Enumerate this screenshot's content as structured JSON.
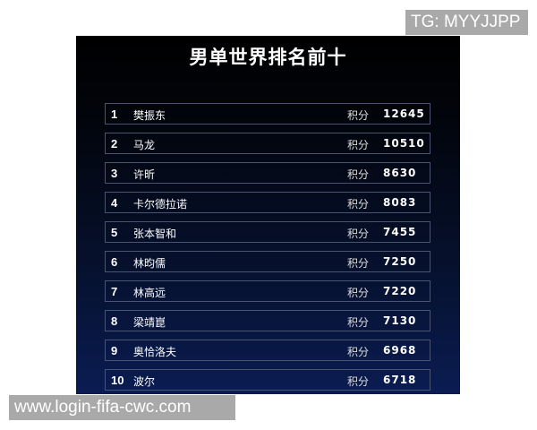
{
  "title": "男单世界排名前十",
  "points_label": "积分",
  "rows": [
    {
      "rank": "1",
      "name": "樊振东",
      "points": "12645"
    },
    {
      "rank": "2",
      "name": "马龙",
      "points": "10510"
    },
    {
      "rank": "3",
      "name": "许昕",
      "points": "8630"
    },
    {
      "rank": "4",
      "name": "卡尔德拉诺",
      "points": "8083"
    },
    {
      "rank": "5",
      "name": "张本智和",
      "points": "7455"
    },
    {
      "rank": "6",
      "name": "林昀儒",
      "points": "7250"
    },
    {
      "rank": "7",
      "name": "林高远",
      "points": "7220"
    },
    {
      "rank": "8",
      "name": "梁靖崑",
      "points": "7130"
    },
    {
      "rank": "9",
      "name": "奥恰洛夫",
      "points": "6968"
    },
    {
      "rank": "10",
      "name": "波尔",
      "points": "6718"
    }
  ],
  "watermark_top": "TG: MYYJJPP",
  "watermark_bottom": "www.login-fifa-cwc.com",
  "colors": {
    "background_top": "#000000",
    "background_bottom": "#0a1c52",
    "row_border": "#4a5470",
    "watermark": "#a9a9a9"
  }
}
